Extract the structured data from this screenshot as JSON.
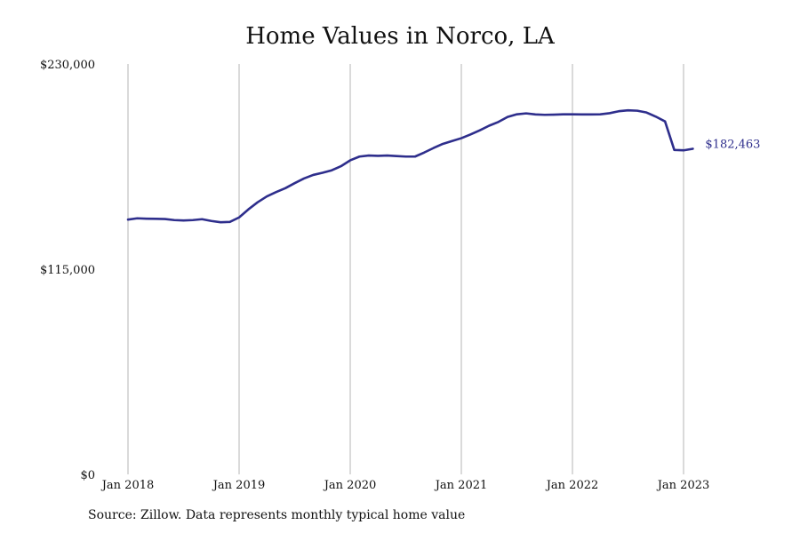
{
  "chart_data": {
    "type": "line",
    "title": "Home Values in Norco, LA",
    "xlabel": "",
    "ylabel": "",
    "ylim": [
      0,
      230000
    ],
    "y_ticks": [
      {
        "value": 0,
        "label": "$0"
      },
      {
        "value": 115000,
        "label": "$115,000"
      },
      {
        "value": 230000,
        "label": "$230,000"
      }
    ],
    "x_ticks": [
      {
        "value": "2018-01",
        "label": "Jan 2018"
      },
      {
        "value": "2019-01",
        "label": "Jan 2019"
      },
      {
        "value": "2020-01",
        "label": "Jan 2020"
      },
      {
        "value": "2021-01",
        "label": "Jan 2021"
      },
      {
        "value": "2022-01",
        "label": "Jan 2022"
      },
      {
        "value": "2023-01",
        "label": "Jan 2023"
      }
    ],
    "grid": "vertical",
    "line_color": "#2e2e8c",
    "end_label": "$182,463",
    "series": [
      {
        "x": [
          "2018-01",
          "2018-02",
          "2018-03",
          "2018-04",
          "2018-05",
          "2018-06",
          "2018-07",
          "2018-08",
          "2018-09",
          "2018-10",
          "2018-11",
          "2018-12",
          "2019-01",
          "2019-02",
          "2019-03",
          "2019-04",
          "2019-05",
          "2019-06",
          "2019-07",
          "2019-08",
          "2019-09",
          "2019-10",
          "2019-11",
          "2019-12",
          "2020-01",
          "2020-02",
          "2020-03",
          "2020-04",
          "2020-05",
          "2020-06",
          "2020-07",
          "2020-08",
          "2020-09",
          "2020-10",
          "2020-11",
          "2020-12",
          "2021-01",
          "2021-02",
          "2021-03",
          "2021-04",
          "2021-05",
          "2021-06",
          "2021-07",
          "2021-08",
          "2021-09",
          "2021-10",
          "2021-11",
          "2021-12",
          "2022-01",
          "2022-02",
          "2022-03",
          "2022-04",
          "2022-05",
          "2022-06",
          "2022-07",
          "2022-08",
          "2022-09",
          "2022-10",
          "2022-11",
          "2022-12",
          "2023-01",
          "2023-02"
        ],
        "values": [
          142800,
          143500,
          143300,
          143200,
          143100,
          142500,
          142300,
          142500,
          143000,
          142000,
          141300,
          141500,
          144000,
          148500,
          152500,
          155800,
          158200,
          160400,
          163200,
          165800,
          167800,
          169000,
          170400,
          172700,
          176000,
          178100,
          178700,
          178500,
          178700,
          178400,
          178100,
          178100,
          180400,
          182900,
          185200,
          186800,
          188400,
          190500,
          192800,
          195400,
          197500,
          200300,
          201800,
          202300,
          201700,
          201500,
          201600,
          201800,
          201800,
          201700,
          201700,
          201800,
          202400,
          203500,
          204000,
          203800,
          202800,
          200500,
          197800,
          181800,
          181600,
          182463
        ]
      }
    ]
  },
  "source_note": "Source: Zillow. Data represents monthly typical home value"
}
